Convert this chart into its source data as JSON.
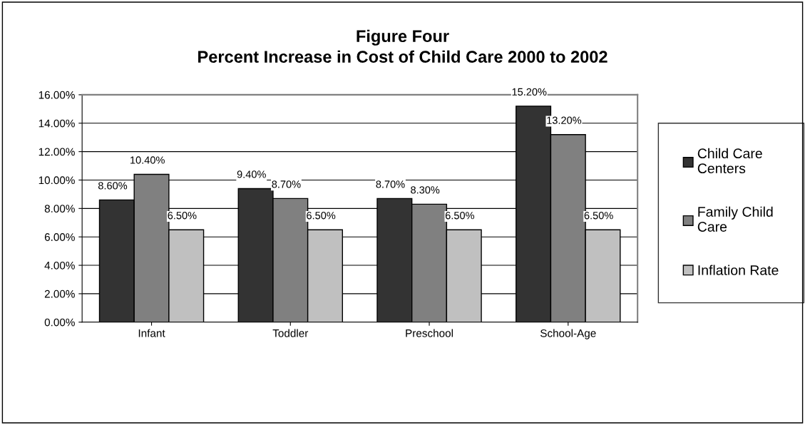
{
  "chart_data": {
    "type": "bar",
    "title": "Figure Four\nPercent Increase in Cost of Child Care 2000 to 2002",
    "categories": [
      "Infant",
      "Toddler",
      "Preschool",
      "School-Age"
    ],
    "series": [
      {
        "name": "Child Care Centers",
        "color": "#333333",
        "values": [
          8.6,
          9.4,
          8.7,
          15.2
        ],
        "value_labels": [
          "8.60%",
          "9.40%",
          "8.70%",
          "15.20%"
        ]
      },
      {
        "name": "Family Child Care",
        "color": "#808080",
        "values": [
          10.4,
          8.7,
          8.3,
          13.2
        ],
        "value_labels": [
          "10.40%",
          "8.70%",
          "8.30%",
          "13.20%"
        ]
      },
      {
        "name": "Inflation Rate",
        "color": "#c0c0c0",
        "values": [
          6.5,
          6.5,
          6.5,
          6.5
        ],
        "value_labels": [
          "6.50%",
          "6.50%",
          "6.50%",
          "6.50%"
        ]
      }
    ],
    "ylim": [
      0,
      16
    ],
    "yticks": [
      {
        "value": 0,
        "label": "0.00%"
      },
      {
        "value": 2,
        "label": "2.00%"
      },
      {
        "value": 4,
        "label": "4.00%"
      },
      {
        "value": 6,
        "label": "6.00%"
      },
      {
        "value": 8,
        "label": "8.00%"
      },
      {
        "value": 10,
        "label": "10.00%"
      },
      {
        "value": 12,
        "label": "12.00%"
      },
      {
        "value": 14,
        "label": "14.00%"
      },
      {
        "value": 16,
        "label": "16.00%"
      }
    ],
    "grid": "y",
    "legend": "right"
  }
}
